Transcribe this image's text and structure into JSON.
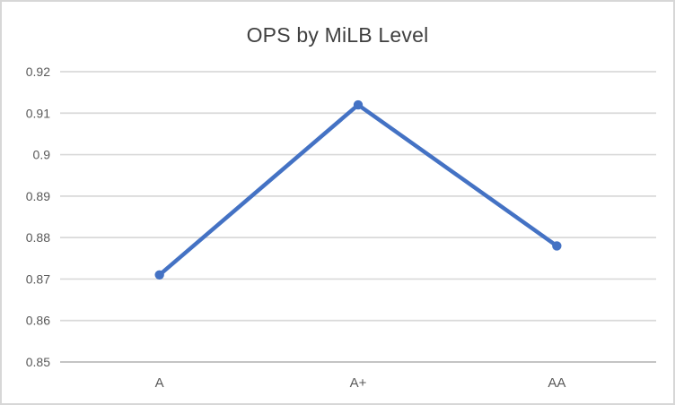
{
  "chart_data": {
    "type": "line",
    "title": "OPS by MiLB Level",
    "categories": [
      "A",
      "A+",
      "AA"
    ],
    "series": [
      {
        "name": "OPS",
        "values": [
          0.871,
          0.912,
          0.878
        ]
      }
    ],
    "ylim": [
      0.85,
      0.92
    ],
    "ytick_step": 0.01,
    "ytick_labels": [
      "0.85",
      "0.86",
      "0.87",
      "0.88",
      "0.89",
      "0.9",
      "0.91",
      "0.92"
    ],
    "xlabel": "",
    "ylabel": "",
    "grid": true,
    "legend": "none",
    "colors": {
      "line": "#4472C4",
      "marker": "#4472C4",
      "gridline": "#D9D9D9",
      "axis_line": "#BFBFBF",
      "tick_label": "#595959",
      "title": "#404040",
      "border": "#D7D7D7",
      "background": "#FFFFFF"
    }
  }
}
